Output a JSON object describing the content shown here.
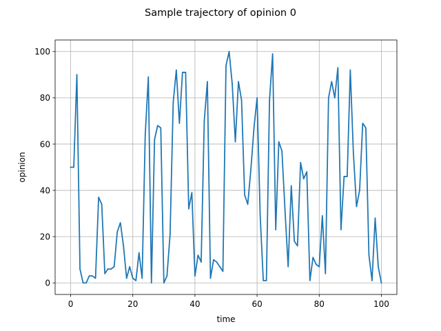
{
  "chart_data": {
    "type": "line",
    "title": "Sample trajectory of opinion 0",
    "xlabel": "time",
    "ylabel": "opinion",
    "xlim": [
      -5,
      105
    ],
    "ylim": [
      -5,
      105
    ],
    "xticks": [
      0,
      20,
      40,
      60,
      80,
      100
    ],
    "yticks": [
      0,
      20,
      40,
      60,
      80,
      100
    ],
    "grid": true,
    "series": [
      {
        "color": "#1f77b4",
        "x": [
          0,
          1,
          2,
          3,
          4,
          5,
          6,
          7,
          8,
          9,
          10,
          11,
          12,
          13,
          14,
          15,
          16,
          17,
          18,
          19,
          20,
          21,
          22,
          23,
          24,
          25,
          26,
          27,
          28,
          29,
          30,
          31,
          32,
          33,
          34,
          35,
          36,
          37,
          38,
          39,
          40,
          41,
          42,
          43,
          44,
          45,
          46,
          47,
          48,
          49,
          50,
          51,
          52,
          53,
          54,
          55,
          56,
          57,
          58,
          59,
          60,
          61,
          62,
          63,
          64,
          65,
          66,
          67,
          68,
          69,
          70,
          71,
          72,
          73,
          74,
          75,
          76,
          77,
          78,
          79,
          80,
          81,
          82,
          83,
          84,
          85,
          86,
          87,
          88,
          89,
          90,
          91,
          92,
          93,
          94,
          95,
          96,
          97,
          98,
          99,
          100
        ],
        "values": [
          50,
          50,
          90,
          6,
          0,
          0,
          3,
          3,
          2,
          37,
          34,
          4,
          6,
          6,
          7,
          22,
          26,
          16,
          2,
          7,
          2,
          1,
          13,
          2,
          64,
          89,
          0,
          62,
          68,
          67,
          0,
          3,
          21,
          78,
          92,
          69,
          91,
          91,
          32,
          39,
          3,
          12,
          9,
          70,
          87,
          2,
          10,
          9,
          7,
          5,
          94,
          100,
          86,
          61,
          87,
          79,
          38,
          34,
          49,
          67,
          80,
          29,
          1,
          1,
          79,
          99,
          23,
          61,
          57,
          31,
          7,
          42,
          18,
          16,
          52,
          45,
          48,
          1,
          11,
          8,
          7,
          29,
          4,
          80,
          87,
          80,
          93,
          23,
          46,
          46,
          92,
          56,
          33,
          40,
          69,
          67,
          12,
          1,
          28,
          7,
          0
        ]
      }
    ]
  }
}
